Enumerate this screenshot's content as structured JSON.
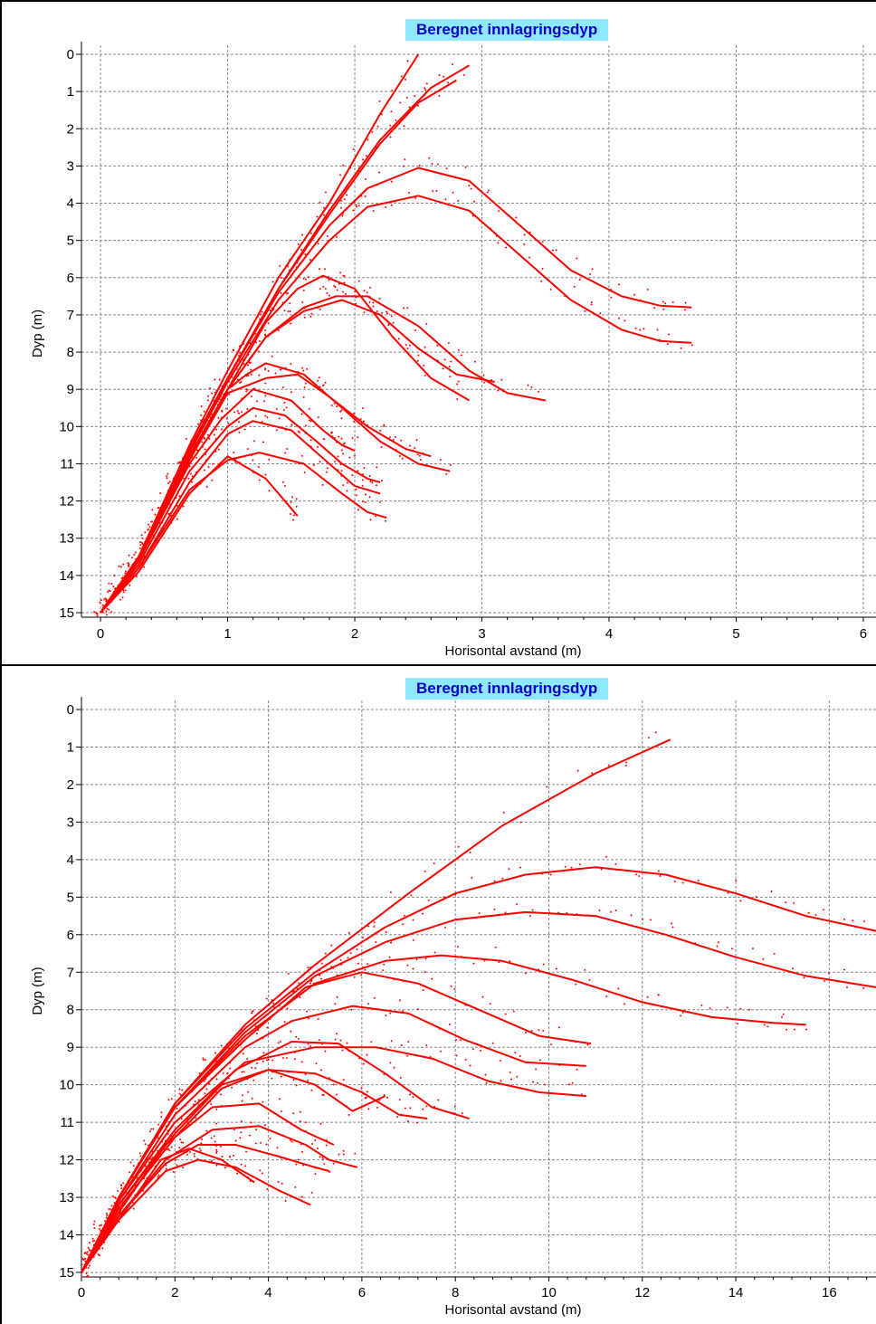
{
  "chart_data": [
    {
      "type": "line",
      "title": "Beregnet innlagringsdyp",
      "xlabel": "Horisontal avstand (m)",
      "ylabel": "Dyp (m)",
      "xlim": [
        -0.15,
        6.1
      ],
      "ylim": [
        15,
        0
      ],
      "y_inverted": true,
      "grid": true,
      "x_ticks": [
        "0",
        "1",
        "2",
        "3",
        "4",
        "5",
        "6"
      ],
      "y_ticks": [
        "0",
        "1",
        "2",
        "3",
        "4",
        "5",
        "6",
        "7",
        "8",
        "9",
        "10",
        "11",
        "12",
        "13",
        "14",
        "15"
      ],
      "series_color": "#ff0000",
      "series": [
        {
          "x": [
            0,
            0.3,
            0.7,
            1.0,
            1.4,
            1.8,
            2.2,
            2.5
          ],
          "y": [
            15,
            13.5,
            10.5,
            8.5,
            6.0,
            4.0,
            1.6,
            0
          ]
        },
        {
          "x": [
            0,
            0.3,
            0.7,
            1.0,
            1.4,
            1.8,
            2.2,
            2.6,
            2.9
          ],
          "y": [
            15,
            13.5,
            10.6,
            8.7,
            6.3,
            4.2,
            2.3,
            0.9,
            0.3
          ]
        },
        {
          "x": [
            0,
            0.3,
            0.7,
            1.0,
            1.4,
            1.8,
            2.2,
            2.5,
            2.8
          ],
          "y": [
            15,
            13.5,
            10.6,
            8.7,
            6.3,
            4.3,
            2.4,
            1.3,
            0.7
          ]
        },
        {
          "x": [
            0,
            0.3,
            0.7,
            1.0,
            1.4,
            1.8,
            2.1,
            2.5,
            2.9,
            3.3,
            3.7,
            4.1,
            4.4,
            4.65
          ],
          "y": [
            15,
            13.5,
            10.6,
            8.7,
            6.4,
            4.6,
            3.6,
            3.05,
            3.4,
            4.6,
            5.8,
            6.5,
            6.75,
            6.8
          ]
        },
        {
          "x": [
            0,
            0.3,
            0.7,
            1.0,
            1.4,
            1.8,
            2.1,
            2.5,
            2.9,
            3.3,
            3.7,
            4.1,
            4.4,
            4.65
          ],
          "y": [
            15,
            13.5,
            10.7,
            8.8,
            6.6,
            5.0,
            4.1,
            3.8,
            4.2,
            5.4,
            6.6,
            7.4,
            7.7,
            7.75
          ]
        },
        {
          "x": [
            0,
            0.3,
            0.7,
            1.0,
            1.3,
            1.55,
            1.75,
            2.0,
            2.3,
            2.6,
            2.9
          ],
          "y": [
            15,
            13.5,
            10.8,
            9.0,
            7.2,
            6.3,
            5.95,
            6.3,
            7.6,
            8.7,
            9.3
          ]
        },
        {
          "x": [
            0,
            0.3,
            0.7,
            1.0,
            1.3,
            1.6,
            1.85,
            2.1,
            2.5,
            2.9,
            3.2,
            3.5
          ],
          "y": [
            15,
            13.5,
            10.8,
            9.0,
            7.6,
            6.8,
            6.5,
            6.5,
            7.3,
            8.5,
            9.1,
            9.3
          ]
        },
        {
          "x": [
            0,
            0.3,
            0.7,
            1.0,
            1.3,
            1.6,
            1.9,
            2.2,
            2.5,
            2.8,
            3.1
          ],
          "y": [
            15,
            13.5,
            10.8,
            9.0,
            7.6,
            6.9,
            6.6,
            7.0,
            7.9,
            8.6,
            8.8
          ]
        },
        {
          "x": [
            0,
            0.3,
            0.7,
            1.0,
            1.15,
            1.3,
            1.6,
            1.9,
            2.2,
            2.5,
            2.75
          ],
          "y": [
            15,
            13.6,
            10.9,
            9.0,
            8.6,
            8.3,
            8.6,
            9.5,
            10.4,
            11.0,
            11.2
          ]
        },
        {
          "x": [
            0,
            0.3,
            0.7,
            1.0,
            1.3,
            1.55,
            1.8,
            2.1,
            2.4,
            2.6
          ],
          "y": [
            15,
            13.6,
            10.9,
            9.1,
            8.7,
            8.6,
            9.2,
            10.0,
            10.6,
            10.8
          ]
        },
        {
          "x": [
            0,
            0.3,
            0.7,
            0.95,
            1.2,
            1.5,
            1.75,
            1.9,
            2.0
          ],
          "y": [
            15,
            13.6,
            11.0,
            9.8,
            9.0,
            9.3,
            10.1,
            10.5,
            10.65
          ]
        },
        {
          "x": [
            0,
            0.3,
            0.7,
            1.0,
            1.2,
            1.45,
            1.7,
            1.9,
            2.1,
            2.2
          ],
          "y": [
            15,
            13.7,
            11.2,
            10.0,
            9.5,
            9.7,
            10.4,
            11.0,
            11.4,
            11.5
          ]
        },
        {
          "x": [
            0,
            0.3,
            0.7,
            1.0,
            1.2,
            1.5,
            1.8,
            2.0,
            2.2
          ],
          "y": [
            15,
            13.8,
            11.5,
            10.2,
            9.85,
            10.1,
            11.0,
            11.6,
            11.8
          ]
        },
        {
          "x": [
            0,
            0.3,
            0.7,
            1.0,
            1.25,
            1.6,
            1.9,
            2.1,
            2.25
          ],
          "y": [
            15,
            13.8,
            11.7,
            10.9,
            10.7,
            11.0,
            11.8,
            12.3,
            12.45
          ]
        },
        {
          "x": [
            0,
            0.3,
            0.7,
            1.0,
            1.3,
            1.5,
            1.55
          ],
          "y": [
            15,
            13.9,
            11.8,
            10.8,
            11.4,
            12.2,
            12.4
          ]
        }
      ]
    },
    {
      "type": "line",
      "title": "Beregnet innlagringsdyp",
      "xlabel": "Horisontal avstand (m)",
      "ylabel": "Dyp (m)",
      "xlim": [
        0,
        17
      ],
      "ylim": [
        15,
        0
      ],
      "y_inverted": true,
      "grid": true,
      "x_ticks": [
        "0",
        "2",
        "4",
        "6",
        "8",
        "10",
        "12",
        "14",
        "16"
      ],
      "y_ticks": [
        "0",
        "1",
        "2",
        "3",
        "4",
        "5",
        "6",
        "7",
        "8",
        "9",
        "10",
        "11",
        "12",
        "13",
        "14",
        "15"
      ],
      "series_color": "#ff0000",
      "series": [
        {
          "x": [
            0,
            0.8,
            2,
            3.5,
            5,
            7,
            9,
            11,
            12.6
          ],
          "y": [
            15,
            13.0,
            10.5,
            8.4,
            6.8,
            4.9,
            3.1,
            1.7,
            0.8
          ]
        },
        {
          "x": [
            0,
            0.8,
            2,
            3.5,
            5,
            6.5,
            8,
            9.5,
            11,
            12.5,
            14,
            15.5,
            17
          ],
          "y": [
            15,
            13.0,
            10.5,
            8.5,
            7.0,
            5.8,
            4.9,
            4.4,
            4.2,
            4.4,
            4.9,
            5.5,
            5.9
          ]
        },
        {
          "x": [
            0,
            0.8,
            2,
            3.5,
            5,
            6.5,
            8,
            9.5,
            11,
            12.5,
            14,
            15.5,
            17
          ],
          "y": [
            15,
            13.0,
            10.6,
            8.6,
            7.1,
            6.2,
            5.6,
            5.4,
            5.5,
            6.0,
            6.6,
            7.1,
            7.4
          ]
        },
        {
          "x": [
            0,
            0.8,
            2,
            3.5,
            5,
            6.5,
            7.7,
            9,
            10.5,
            12,
            13.5,
            14.8,
            15.5
          ],
          "y": [
            15,
            13.0,
            10.6,
            8.7,
            7.3,
            6.7,
            6.55,
            6.7,
            7.2,
            7.8,
            8.2,
            8.35,
            8.4
          ]
        },
        {
          "x": [
            0,
            0.8,
            2,
            3.5,
            4.8,
            6.0,
            7.2,
            8.5,
            9.8,
            10.9
          ],
          "y": [
            15,
            13.0,
            10.6,
            8.8,
            7.4,
            7.0,
            7.3,
            8.0,
            8.7,
            8.9
          ]
        },
        {
          "x": [
            0,
            0.8,
            2,
            3.5,
            4.5,
            5.8,
            7.0,
            8.2,
            9.5,
            10.8
          ],
          "y": [
            15,
            13.1,
            10.8,
            9.0,
            8.3,
            7.9,
            8.1,
            8.8,
            9.4,
            9.5
          ]
        },
        {
          "x": [
            0,
            0.8,
            2,
            3.5,
            5.0,
            6.3,
            7.5,
            8.7,
            9.8,
            10.8
          ],
          "y": [
            15,
            13.1,
            11.0,
            9.4,
            9.0,
            9.0,
            9.3,
            9.9,
            10.2,
            10.3
          ]
        },
        {
          "x": [
            0,
            0.8,
            2,
            3.3,
            4.5,
            5.5,
            6.5,
            7.5,
            8.3
          ],
          "y": [
            15,
            13.2,
            11.2,
            9.6,
            8.85,
            8.9,
            9.7,
            10.6,
            10.9
          ]
        },
        {
          "x": [
            0,
            0.8,
            2,
            3.0,
            4.0,
            5.0,
            6.0,
            6.8,
            7.4
          ],
          "y": [
            15,
            13.2,
            11.3,
            10.0,
            9.6,
            9.7,
            10.2,
            10.8,
            10.9
          ]
        },
        {
          "x": [
            0,
            0.8,
            2,
            3.0,
            4.0,
            5.0,
            5.8,
            6.5
          ],
          "y": [
            15,
            13.3,
            11.4,
            10.1,
            9.6,
            10.0,
            10.7,
            10.3
          ]
        },
        {
          "x": [
            0,
            0.8,
            1.8,
            2.8,
            3.8,
            4.7,
            5.4
          ],
          "y": [
            15,
            13.4,
            11.6,
            10.6,
            10.5,
            11.2,
            11.6
          ]
        },
        {
          "x": [
            0,
            0.8,
            1.8,
            2.8,
            3.8,
            4.8,
            5.3,
            5.9
          ],
          "y": [
            15,
            13.5,
            12.0,
            11.2,
            11.1,
            11.6,
            12.0,
            12.2
          ]
        },
        {
          "x": [
            0,
            0.8,
            1.8,
            2.5,
            3.3,
            4.2,
            5.0,
            5.3
          ],
          "y": [
            15,
            13.5,
            12.1,
            11.6,
            11.6,
            11.9,
            12.2,
            12.3
          ]
        },
        {
          "x": [
            0,
            0.8,
            1.8,
            2.5,
            3.3,
            4.2,
            4.9
          ],
          "y": [
            15,
            13.6,
            12.3,
            12.0,
            12.2,
            12.8,
            13.2
          ]
        },
        {
          "x": [
            0,
            0.8,
            1.7,
            2.3,
            3.0,
            3.7
          ],
          "y": [
            15,
            13.6,
            12.0,
            11.7,
            12.0,
            12.6
          ]
        }
      ]
    }
  ]
}
